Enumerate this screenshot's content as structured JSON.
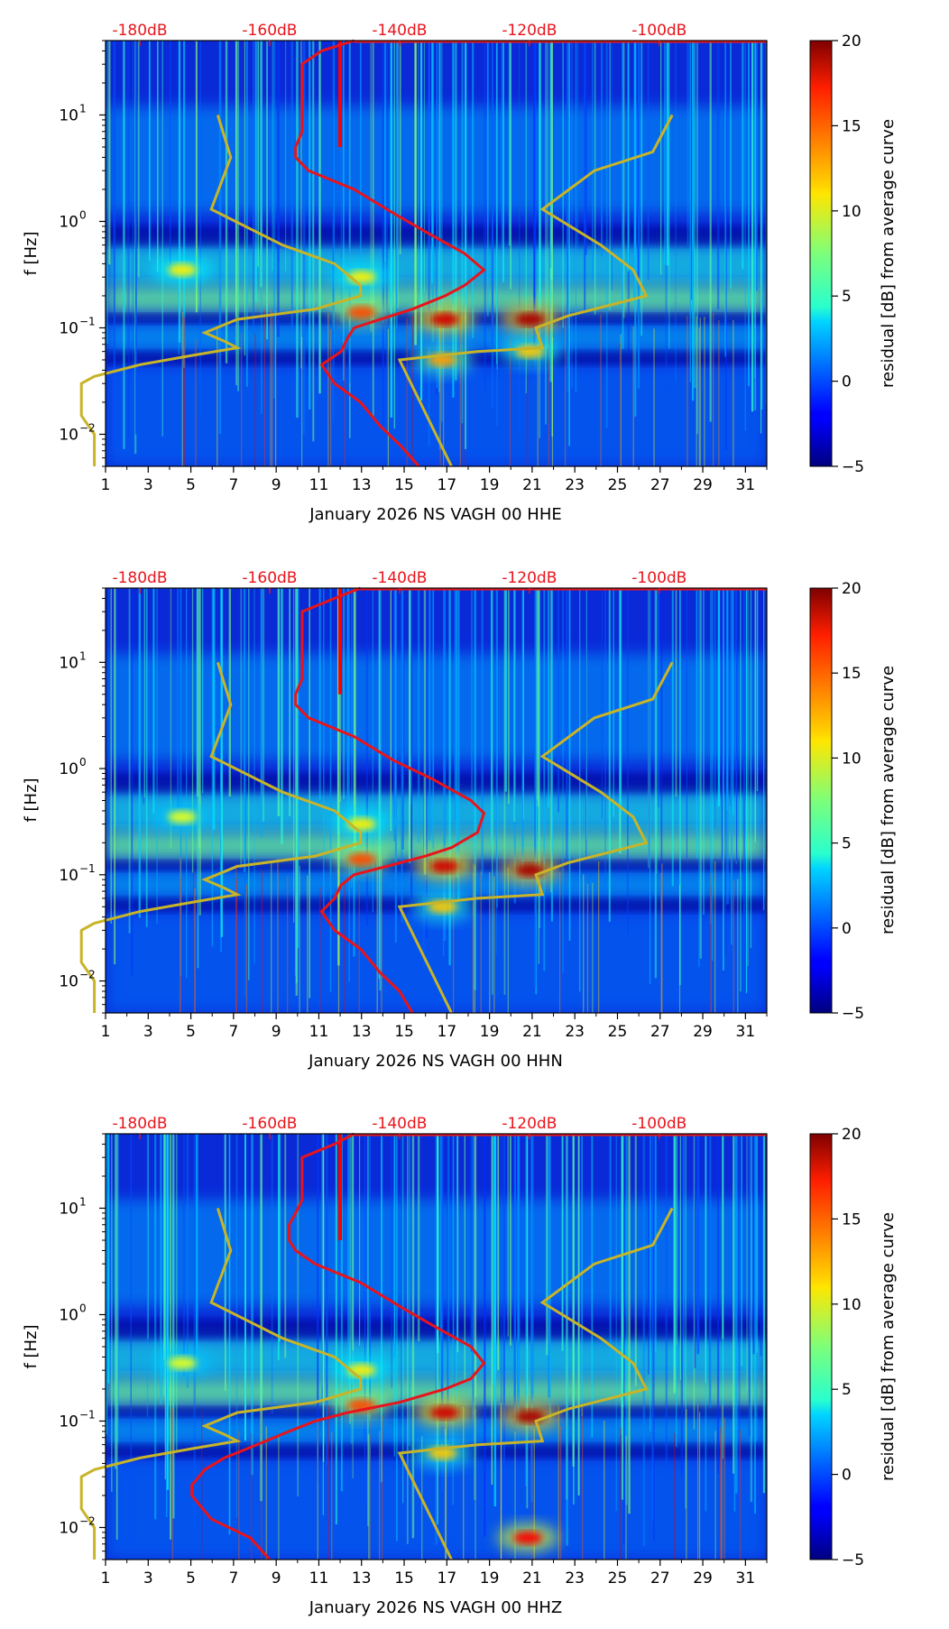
{
  "figure": {
    "colorbar_label": "residual [dB] from average curve",
    "colorbar_ticks": [
      "20",
      "15",
      "10",
      "5",
      "0",
      "−5"
    ],
    "colorbar_range": [
      -5,
      20
    ],
    "colors": {
      "average_curve": "#e8141b",
      "reference_curve": "#c8b428",
      "top_axis_text": "#e8141b"
    }
  },
  "chart_data": [
    {
      "type": "heatmap",
      "title": "",
      "xlabel": "January 2026 NS VAGH 00 HHE",
      "ylabel": "f [Hz]",
      "x_ticks": [
        "1",
        "3",
        "5",
        "7",
        "9",
        "11",
        "13",
        "15",
        "17",
        "19",
        "21",
        "23",
        "25",
        "27",
        "29",
        "31"
      ],
      "y_ticks": [
        "10",
        "10",
        "10",
        "10"
      ],
      "y_tick_exponents": [
        "1",
        "0",
        "−1",
        "−2"
      ],
      "top_ticks": [
        "-180dB",
        "-160dB",
        "-140dB",
        "-120dB",
        "-100dB"
      ],
      "xlim": [
        1,
        32
      ],
      "ylim_hz": [
        0.005,
        50
      ],
      "average_curve_db": [
        [
          50,
          -147
        ],
        [
          40,
          -152
        ],
        [
          30,
          -155
        ],
        [
          20,
          -155
        ],
        [
          12,
          -155
        ],
        [
          9,
          -155
        ],
        [
          7,
          -155
        ],
        [
          5,
          -156
        ],
        [
          4,
          -156
        ],
        [
          3,
          -154
        ],
        [
          2,
          -147
        ],
        [
          1.2,
          -141
        ],
        [
          0.8,
          -136
        ],
        [
          0.5,
          -130
        ],
        [
          0.35,
          -127
        ],
        [
          0.25,
          -130
        ],
        [
          0.2,
          -133
        ],
        [
          0.15,
          -138
        ],
        [
          0.12,
          -143
        ],
        [
          0.1,
          -147
        ],
        [
          0.08,
          -148
        ],
        [
          0.06,
          -149
        ],
        [
          0.045,
          -152
        ],
        [
          0.03,
          -150
        ],
        [
          0.02,
          -146
        ],
        [
          0.012,
          -143
        ],
        [
          0.008,
          -140
        ],
        [
          0.005,
          -137
        ]
      ],
      "reference_curve_db": [
        [
          10,
          -168
        ],
        [
          4,
          -166
        ],
        [
          1.3,
          -169
        ],
        [
          0.6,
          -158
        ],
        [
          0.4,
          -150
        ],
        [
          0.25,
          -146
        ],
        [
          0.2,
          -146
        ],
        [
          0.15,
          -153
        ],
        [
          0.12,
          -165
        ],
        [
          0.09,
          -170
        ],
        [
          0.075,
          -167
        ],
        [
          0.065,
          -165
        ],
        [
          0.055,
          -172
        ],
        [
          0.045,
          -180
        ],
        [
          0.035,
          -187
        ],
        [
          0.03,
          -189
        ],
        [
          0.015,
          -189
        ],
        [
          0.01,
          -187
        ],
        [
          0.005,
          -187
        ]
      ],
      "reference_curve_db_high": [
        [
          10,
          -98
        ],
        [
          4.5,
          -101
        ],
        [
          3,
          -110
        ],
        [
          1.3,
          -118
        ],
        [
          0.6,
          -109
        ],
        [
          0.35,
          -104
        ],
        [
          0.2,
          -102
        ],
        [
          0.13,
          -114
        ],
        [
          0.1,
          -119
        ],
        [
          0.065,
          -118
        ],
        [
          0.06,
          -128
        ],
        [
          0.05,
          -140
        ],
        [
          0.005,
          -132
        ]
      ],
      "red_bands": [
        {
          "day": 12.0,
          "fmin": 5,
          "fmax": 50
        }
      ],
      "hotspots": [
        {
          "day": 16.9,
          "f": 0.12,
          "level": 18
        },
        {
          "day": 20.9,
          "f": 0.12,
          "level": 19
        },
        {
          "day": 13.0,
          "f": 0.14,
          "level": 15
        },
        {
          "day": 16.8,
          "f": 0.05,
          "level": 13
        },
        {
          "day": 20.9,
          "f": 0.06,
          "level": 12
        },
        {
          "day": 13.0,
          "f": 0.3,
          "level": 11
        },
        {
          "day": 4.6,
          "f": 0.35,
          "level": 11
        }
      ]
    },
    {
      "type": "heatmap",
      "title": "",
      "xlabel": "January 2026 NS VAGH 00 HHN",
      "ylabel": "f [Hz]",
      "x_ticks": [
        "1",
        "3",
        "5",
        "7",
        "9",
        "11",
        "13",
        "15",
        "17",
        "19",
        "21",
        "23",
        "25",
        "27",
        "29",
        "31"
      ],
      "y_ticks": [
        "10",
        "10",
        "10",
        "10"
      ],
      "y_tick_exponents": [
        "1",
        "0",
        "−1",
        "−2"
      ],
      "top_ticks": [
        "-180dB",
        "-160dB",
        "-140dB",
        "-120dB",
        "-100dB"
      ],
      "xlim": [
        1,
        32
      ],
      "ylim_hz": [
        0.005,
        50
      ],
      "average_curve_db": [
        [
          50,
          -146
        ],
        [
          40,
          -150
        ],
        [
          30,
          -155
        ],
        [
          20,
          -155
        ],
        [
          12,
          -155
        ],
        [
          9,
          -155
        ],
        [
          7,
          -155
        ],
        [
          5,
          -156
        ],
        [
          4,
          -156
        ],
        [
          3,
          -154
        ],
        [
          2,
          -147
        ],
        [
          1.2,
          -141
        ],
        [
          0.8,
          -135
        ],
        [
          0.5,
          -129
        ],
        [
          0.38,
          -127
        ],
        [
          0.25,
          -128
        ],
        [
          0.18,
          -132
        ],
        [
          0.15,
          -136
        ],
        [
          0.12,
          -142
        ],
        [
          0.1,
          -147
        ],
        [
          0.08,
          -149
        ],
        [
          0.06,
          -150
        ],
        [
          0.045,
          -152
        ],
        [
          0.03,
          -150
        ],
        [
          0.02,
          -146
        ],
        [
          0.012,
          -143
        ],
        [
          0.008,
          -140
        ],
        [
          0.005,
          -138
        ]
      ],
      "reference_curve_db": [
        [
          10,
          -168
        ],
        [
          4,
          -166
        ],
        [
          1.3,
          -169
        ],
        [
          0.6,
          -158
        ],
        [
          0.4,
          -150
        ],
        [
          0.25,
          -146
        ],
        [
          0.2,
          -146
        ],
        [
          0.15,
          -153
        ],
        [
          0.12,
          -165
        ],
        [
          0.09,
          -170
        ],
        [
          0.075,
          -167
        ],
        [
          0.065,
          -165
        ],
        [
          0.055,
          -172
        ],
        [
          0.045,
          -180
        ],
        [
          0.035,
          -187
        ],
        [
          0.03,
          -189
        ],
        [
          0.015,
          -189
        ],
        [
          0.01,
          -187
        ],
        [
          0.005,
          -187
        ]
      ],
      "reference_curve_db_high": [
        [
          10,
          -98
        ],
        [
          4.5,
          -101
        ],
        [
          3,
          -110
        ],
        [
          1.3,
          -118
        ],
        [
          0.6,
          -109
        ],
        [
          0.35,
          -104
        ],
        [
          0.2,
          -102
        ],
        [
          0.13,
          -114
        ],
        [
          0.1,
          -119
        ],
        [
          0.065,
          -118
        ],
        [
          0.06,
          -128
        ],
        [
          0.05,
          -140
        ],
        [
          0.005,
          -132
        ]
      ],
      "red_bands": [
        {
          "day": 12.0,
          "fmin": 5,
          "fmax": 50
        }
      ],
      "hotspots": [
        {
          "day": 16.9,
          "f": 0.12,
          "level": 18
        },
        {
          "day": 20.9,
          "f": 0.11,
          "level": 19
        },
        {
          "day": 13.0,
          "f": 0.14,
          "level": 15
        },
        {
          "day": 16.8,
          "f": 0.05,
          "level": 12
        },
        {
          "day": 13.0,
          "f": 0.3,
          "level": 11
        },
        {
          "day": 4.6,
          "f": 0.35,
          "level": 10
        }
      ]
    },
    {
      "type": "heatmap",
      "title": "",
      "xlabel": "January 2026 NS VAGH 00 HHZ",
      "ylabel": "f [Hz]",
      "x_ticks": [
        "1",
        "3",
        "5",
        "7",
        "9",
        "11",
        "13",
        "15",
        "17",
        "19",
        "21",
        "23",
        "25",
        "27",
        "29",
        "31"
      ],
      "y_ticks": [
        "10",
        "10",
        "10",
        "10"
      ],
      "y_tick_exponents": [
        "1",
        "0",
        "−1",
        "−2"
      ],
      "top_ticks": [
        "-180dB",
        "-160dB",
        "-140dB",
        "-120dB",
        "-100dB"
      ],
      "xlim": [
        1,
        32
      ],
      "ylim_hz": [
        0.005,
        50
      ],
      "average_curve_db": [
        [
          50,
          -147
        ],
        [
          40,
          -150
        ],
        [
          30,
          -155
        ],
        [
          20,
          -155
        ],
        [
          12,
          -155
        ],
        [
          9,
          -156
        ],
        [
          7,
          -157
        ],
        [
          5,
          -157
        ],
        [
          4,
          -156
        ],
        [
          3,
          -153
        ],
        [
          2,
          -146
        ],
        [
          1.2,
          -140
        ],
        [
          0.8,
          -135
        ],
        [
          0.5,
          -129
        ],
        [
          0.35,
          -127
        ],
        [
          0.25,
          -129
        ],
        [
          0.2,
          -133
        ],
        [
          0.15,
          -140
        ],
        [
          0.12,
          -148
        ],
        [
          0.1,
          -153
        ],
        [
          0.08,
          -157
        ],
        [
          0.06,
          -162
        ],
        [
          0.045,
          -167
        ],
        [
          0.035,
          -170
        ],
        [
          0.025,
          -172
        ],
        [
          0.02,
          -172
        ],
        [
          0.012,
          -169
        ],
        [
          0.008,
          -163
        ],
        [
          0.005,
          -160
        ]
      ],
      "reference_curve_db": [
        [
          10,
          -168
        ],
        [
          4,
          -166
        ],
        [
          1.3,
          -169
        ],
        [
          0.6,
          -158
        ],
        [
          0.4,
          -150
        ],
        [
          0.25,
          -146
        ],
        [
          0.2,
          -146
        ],
        [
          0.15,
          -153
        ],
        [
          0.12,
          -165
        ],
        [
          0.09,
          -170
        ],
        [
          0.075,
          -167
        ],
        [
          0.065,
          -165
        ],
        [
          0.055,
          -172
        ],
        [
          0.045,
          -180
        ],
        [
          0.035,
          -187
        ],
        [
          0.03,
          -189
        ],
        [
          0.015,
          -189
        ],
        [
          0.01,
          -187
        ],
        [
          0.005,
          -187
        ]
      ],
      "reference_curve_db_high": [
        [
          10,
          -98
        ],
        [
          4.5,
          -101
        ],
        [
          3,
          -110
        ],
        [
          1.3,
          -118
        ],
        [
          0.6,
          -109
        ],
        [
          0.35,
          -104
        ],
        [
          0.2,
          -102
        ],
        [
          0.13,
          -114
        ],
        [
          0.1,
          -119
        ],
        [
          0.065,
          -118
        ],
        [
          0.06,
          -128
        ],
        [
          0.05,
          -140
        ],
        [
          0.005,
          -132
        ]
      ],
      "red_bands": [
        {
          "day": 12.0,
          "fmin": 5,
          "fmax": 50
        }
      ],
      "hotspots": [
        {
          "day": 16.9,
          "f": 0.12,
          "level": 18
        },
        {
          "day": 20.9,
          "f": 0.11,
          "level": 19
        },
        {
          "day": 13.0,
          "f": 0.14,
          "level": 15
        },
        {
          "day": 16.8,
          "f": 0.05,
          "level": 12
        },
        {
          "day": 13.0,
          "f": 0.3,
          "level": 11
        },
        {
          "day": 20.8,
          "f": 0.008,
          "level": 17
        },
        {
          "day": 4.6,
          "f": 0.35,
          "level": 10
        }
      ]
    }
  ]
}
